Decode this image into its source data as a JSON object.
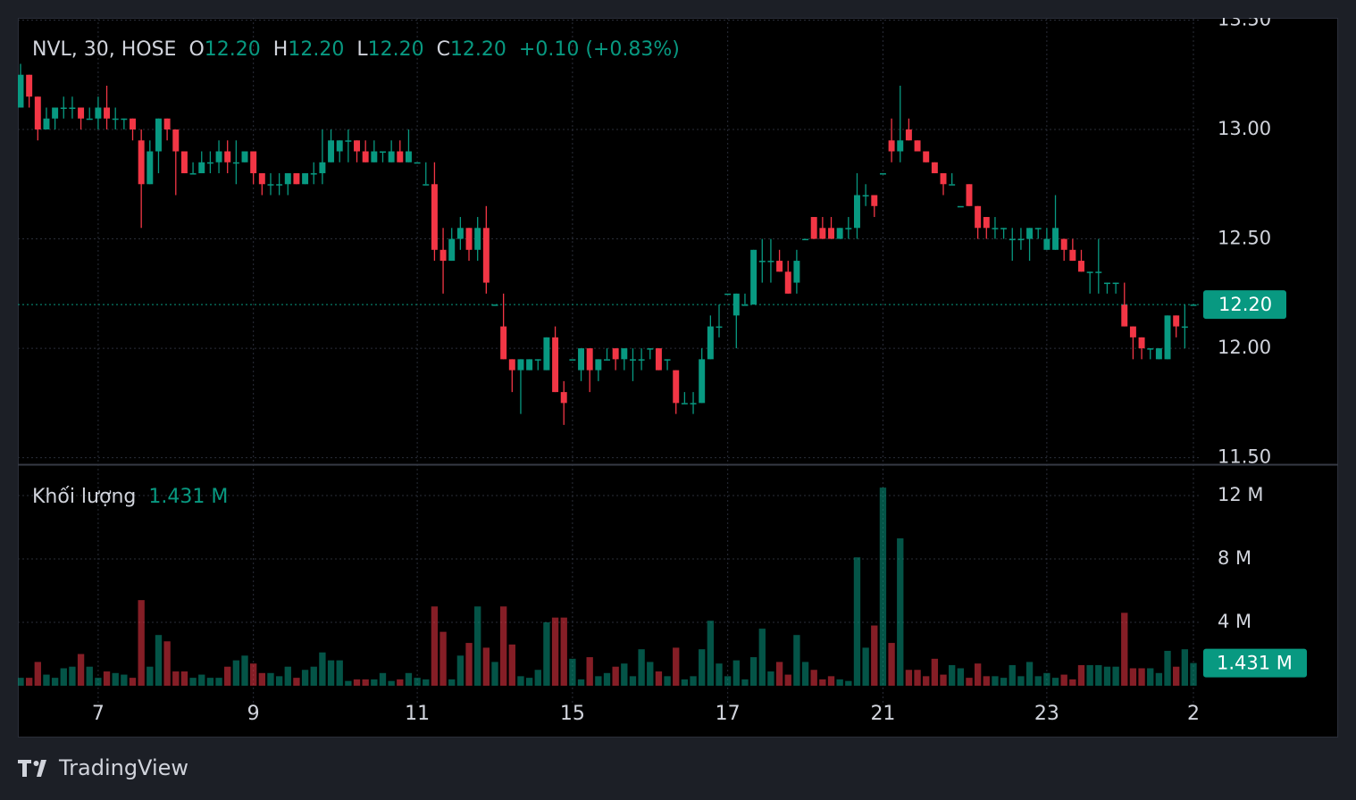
{
  "chart_data": {
    "type": "candlestick",
    "legend": {
      "title": "NVL, 30, HOSE",
      "items": [
        {
          "key": "O",
          "value": "12.20"
        },
        {
          "key": "H",
          "value": "12.20"
        },
        {
          "key": "L",
          "value": "12.20"
        },
        {
          "key": "C",
          "value": "12.20"
        }
      ],
      "change": "+0.10 (+0.83%)"
    },
    "volume_title": "Khối lượng",
    "brand": "TradingView",
    "up_color": "#089981",
    "down_color": "#f23645",
    "grid": true,
    "ylim": [
      11.47,
      13.51
    ],
    "yticks": [
      {
        "value": 11.5,
        "label": "11.50"
      },
      {
        "value": 12,
        "label": "12.00"
      },
      {
        "value": 12.5,
        "label": "12.50"
      },
      {
        "value": 13,
        "label": "13.00"
      },
      {
        "value": 13.5,
        "label": "13.50"
      }
    ],
    "last_price": {
      "value": 12.2,
      "label": "12.20"
    },
    "volume_ylim": [
      0,
      13.97
    ],
    "volume_yticks": [
      {
        "value": 4,
        "label": "4 M"
      },
      {
        "value": 8,
        "label": "8 M"
      },
      {
        "value": 12,
        "label": "12 M"
      }
    ],
    "categories": [
      null,
      null,
      null,
      null,
      null,
      null,
      null,
      null,
      null,
      "7",
      null,
      null,
      null,
      null,
      null,
      null,
      null,
      null,
      null,
      null,
      null,
      null,
      null,
      null,
      null,
      null,
      null,
      "9",
      null,
      null,
      null,
      null,
      null,
      null,
      null,
      null,
      null,
      null,
      null,
      null,
      null,
      null,
      null,
      null,
      null,
      null,
      "11",
      null,
      null,
      null,
      null,
      null,
      null,
      null,
      null,
      null,
      null,
      null,
      null,
      null,
      null,
      null,
      null,
      null,
      "15",
      null,
      null,
      null,
      null,
      null,
      null,
      null,
      null,
      null,
      null,
      null,
      null,
      null,
      null,
      null,
      null,
      null,
      "17",
      null,
      null,
      null,
      null,
      null,
      null,
      null,
      null,
      null,
      null,
      null,
      null,
      null,
      null,
      null,
      null,
      null,
      "21",
      null,
      null,
      null,
      null,
      null,
      null,
      null,
      null,
      null,
      null,
      null,
      null,
      null,
      null,
      null,
      null,
      null,
      null,
      "23",
      null,
      null,
      null,
      null,
      null,
      null,
      null,
      null,
      null,
      null,
      null,
      null,
      null,
      null,
      null,
      null,
      "2"
    ],
    "ohlc": [
      [
        13.1,
        13.3,
        13.1,
        13.25
      ],
      [
        13.25,
        13.25,
        13.1,
        13.15
      ],
      [
        13.15,
        13.15,
        12.95,
        13.0
      ],
      [
        13.0,
        13.1,
        13.0,
        13.05
      ],
      [
        13.05,
        13.1,
        13.0,
        13.1
      ],
      [
        13.1,
        13.15,
        13.05,
        13.1
      ],
      [
        13.1,
        13.15,
        13.05,
        13.1
      ],
      [
        13.1,
        13.1,
        13.0,
        13.05
      ],
      [
        13.05,
        13.1,
        13.05,
        13.05
      ],
      [
        13.05,
        13.15,
        13.0,
        13.1
      ],
      [
        13.1,
        13.2,
        13.0,
        13.05
      ],
      [
        13.05,
        13.1,
        13.0,
        13.05
      ],
      [
        13.05,
        13.05,
        13.0,
        13.05
      ],
      [
        13.05,
        13.05,
        12.95,
        13.0
      ],
      [
        12.95,
        13.0,
        12.55,
        12.75
      ],
      [
        12.75,
        12.95,
        12.75,
        12.9
      ],
      [
        12.9,
        13.05,
        12.8,
        13.05
      ],
      [
        13.05,
        13.05,
        12.95,
        13.0
      ],
      [
        13.0,
        13.0,
        12.7,
        12.9
      ],
      [
        12.9,
        12.9,
        12.8,
        12.8
      ],
      [
        12.8,
        12.85,
        12.8,
        12.8
      ],
      [
        12.8,
        12.9,
        12.8,
        12.85
      ],
      [
        12.85,
        12.9,
        12.8,
        12.85
      ],
      [
        12.85,
        12.95,
        12.8,
        12.9
      ],
      [
        12.9,
        12.95,
        12.8,
        12.85
      ],
      [
        12.85,
        12.95,
        12.75,
        12.85
      ],
      [
        12.85,
        12.9,
        12.85,
        12.9
      ],
      [
        12.9,
        12.9,
        12.75,
        12.8
      ],
      [
        12.8,
        12.8,
        12.7,
        12.75
      ],
      [
        12.75,
        12.8,
        12.7,
        12.75
      ],
      [
        12.75,
        12.8,
        12.7,
        12.75
      ],
      [
        12.75,
        12.8,
        12.7,
        12.8
      ],
      [
        12.8,
        12.8,
        12.75,
        12.75
      ],
      [
        12.75,
        12.8,
        12.75,
        12.8
      ],
      [
        12.8,
        12.85,
        12.75,
        12.8
      ],
      [
        12.8,
        13.0,
        12.75,
        12.85
      ],
      [
        12.85,
        13.0,
        12.85,
        12.95
      ],
      [
        12.9,
        12.95,
        12.85,
        12.95
      ],
      [
        12.95,
        13.0,
        12.85,
        12.95
      ],
      [
        12.95,
        12.95,
        12.85,
        12.9
      ],
      [
        12.9,
        12.95,
        12.85,
        12.85
      ],
      [
        12.85,
        12.95,
        12.85,
        12.9
      ],
      [
        12.9,
        12.9,
        12.85,
        12.9
      ],
      [
        12.85,
        12.95,
        12.85,
        12.9
      ],
      [
        12.9,
        12.95,
        12.85,
        12.85
      ],
      [
        12.85,
        13.0,
        12.85,
        12.9
      ],
      [
        12.85,
        12.85,
        12.85,
        12.85
      ],
      [
        12.75,
        12.85,
        12.75,
        12.75
      ],
      [
        12.75,
        12.85,
        12.4,
        12.45
      ],
      [
        12.45,
        12.55,
        12.25,
        12.4
      ],
      [
        12.4,
        12.55,
        12.4,
        12.5
      ],
      [
        12.5,
        12.6,
        12.45,
        12.55
      ],
      [
        12.55,
        12.55,
        12.4,
        12.45
      ],
      [
        12.45,
        12.6,
        12.4,
        12.55
      ],
      [
        12.55,
        12.65,
        12.25,
        12.3
      ],
      [
        12.2,
        12.2,
        12.2,
        12.2
      ],
      [
        12.1,
        12.25,
        11.95,
        11.95
      ],
      [
        11.95,
        11.95,
        11.8,
        11.9
      ],
      [
        11.9,
        11.95,
        11.7,
        11.95
      ],
      [
        11.9,
        11.95,
        11.9,
        11.95
      ],
      [
        11.95,
        11.95,
        11.9,
        11.95
      ],
      [
        11.9,
        12.05,
        11.9,
        12.05
      ],
      [
        12.05,
        12.1,
        11.8,
        11.8
      ],
      [
        11.8,
        11.85,
        11.65,
        11.75
      ],
      [
        11.95,
        11.95,
        11.95,
        11.95
      ],
      [
        11.9,
        12.0,
        11.85,
        12.0
      ],
      [
        12.0,
        12.0,
        11.8,
        11.9
      ],
      [
        11.9,
        11.95,
        11.85,
        11.95
      ],
      [
        11.95,
        12.0,
        11.95,
        11.95
      ],
      [
        12.0,
        12.0,
        11.9,
        11.95
      ],
      [
        11.95,
        12.0,
        11.9,
        12.0
      ],
      [
        11.95,
        12.0,
        11.85,
        11.95
      ],
      [
        11.95,
        12.0,
        11.9,
        11.95
      ],
      [
        12.0,
        12.0,
        11.95,
        12.0
      ],
      [
        12.0,
        12.0,
        11.9,
        11.9
      ],
      [
        11.95,
        11.95,
        11.9,
        11.95
      ],
      [
        11.9,
        11.9,
        11.7,
        11.75
      ],
      [
        11.75,
        11.8,
        11.75,
        11.75
      ],
      [
        11.75,
        11.8,
        11.7,
        11.75
      ],
      [
        11.75,
        12.0,
        11.75,
        11.95
      ],
      [
        11.95,
        12.15,
        11.95,
        12.1
      ],
      [
        12.1,
        12.2,
        12.05,
        12.1
      ],
      [
        12.25,
        12.25,
        12.25,
        12.25
      ],
      [
        12.15,
        12.25,
        12.0,
        12.25
      ],
      [
        12.2,
        12.25,
        12.2,
        12.2
      ],
      [
        12.2,
        12.45,
        12.2,
        12.45
      ],
      [
        12.4,
        12.5,
        12.3,
        12.4
      ],
      [
        12.4,
        12.5,
        12.3,
        12.4
      ],
      [
        12.4,
        12.45,
        12.35,
        12.35
      ],
      [
        12.35,
        12.4,
        12.25,
        12.25
      ],
      [
        12.3,
        12.45,
        12.25,
        12.4
      ],
      [
        12.5,
        12.5,
        12.5,
        12.5
      ],
      [
        12.6,
        12.6,
        12.5,
        12.5
      ],
      [
        12.55,
        12.6,
        12.5,
        12.5
      ],
      [
        12.55,
        12.6,
        12.5,
        12.5
      ],
      [
        12.5,
        12.55,
        12.5,
        12.55
      ],
      [
        12.55,
        12.6,
        12.5,
        12.55
      ],
      [
        12.55,
        12.8,
        12.5,
        12.7
      ],
      [
        12.7,
        12.75,
        12.65,
        12.7
      ],
      [
        12.7,
        12.7,
        12.6,
        12.65
      ],
      [
        12.8,
        12.8,
        12.8,
        12.8
      ],
      [
        12.95,
        13.05,
        12.85,
        12.9
      ],
      [
        12.9,
        13.2,
        12.85,
        12.95
      ],
      [
        13.0,
        13.05,
        12.95,
        12.95
      ],
      [
        12.95,
        12.95,
        12.9,
        12.9
      ],
      [
        12.9,
        12.9,
        12.85,
        12.85
      ],
      [
        12.85,
        12.85,
        12.8,
        12.8
      ],
      [
        12.8,
        12.8,
        12.7,
        12.75
      ],
      [
        12.75,
        12.8,
        12.75,
        12.75
      ],
      [
        12.65,
        12.65,
        12.65,
        12.65
      ],
      [
        12.75,
        12.75,
        12.65,
        12.65
      ],
      [
        12.65,
        12.65,
        12.5,
        12.55
      ],
      [
        12.6,
        12.6,
        12.5,
        12.55
      ],
      [
        12.55,
        12.6,
        12.5,
        12.55
      ],
      [
        12.55,
        12.55,
        12.5,
        12.55
      ],
      [
        12.5,
        12.55,
        12.4,
        12.5
      ],
      [
        12.5,
        12.55,
        12.45,
        12.5
      ],
      [
        12.5,
        12.55,
        12.4,
        12.55
      ],
      [
        12.55,
        12.55,
        12.5,
        12.55
      ],
      [
        12.45,
        12.55,
        12.45,
        12.5
      ],
      [
        12.45,
        12.7,
        12.45,
        12.55
      ],
      [
        12.5,
        12.5,
        12.4,
        12.45
      ],
      [
        12.45,
        12.5,
        12.4,
        12.4
      ],
      [
        12.4,
        12.45,
        12.35,
        12.35
      ],
      [
        12.35,
        12.35,
        12.25,
        12.35
      ],
      [
        12.35,
        12.5,
        12.25,
        12.35
      ],
      [
        12.3,
        12.3,
        12.25,
        12.3
      ],
      [
        12.3,
        12.3,
        12.25,
        12.3
      ],
      [
        12.2,
        12.3,
        12.1,
        12.1
      ],
      [
        12.1,
        12.1,
        11.95,
        12.05
      ],
      [
        12.05,
        12.05,
        11.95,
        12.0
      ],
      [
        12.0,
        12.0,
        11.95,
        12.0
      ],
      [
        11.95,
        12.0,
        11.95,
        12.0
      ],
      [
        11.95,
        12.15,
        11.95,
        12.15
      ],
      [
        12.15,
        12.15,
        12.05,
        12.1
      ],
      [
        12.1,
        12.2,
        12.0,
        12.1
      ],
      [
        12.2,
        12.2,
        12.2,
        12.2
      ]
    ],
    "volume": [
      0.5,
      0.5,
      1.5,
      0.7,
      0.5,
      1.1,
      1.2,
      2.0,
      1.2,
      0.5,
      0.9,
      0.8,
      0.7,
      0.5,
      5.4,
      1.2,
      3.2,
      2.8,
      0.9,
      0.9,
      0.5,
      0.7,
      0.5,
      0.5,
      1.2,
      1.6,
      1.9,
      1.4,
      0.8,
      0.8,
      0.6,
      1.2,
      0.5,
      1.0,
      1.2,
      2.1,
      1.6,
      1.6,
      0.3,
      0.4,
      0.4,
      0.4,
      0.8,
      0.3,
      0.4,
      0.8,
      0.5,
      0.4,
      5.0,
      3.4,
      0.4,
      1.9,
      2.7,
      5.0,
      2.4,
      1.5,
      5.0,
      2.6,
      0.6,
      0.5,
      1.0,
      4.0,
      4.3,
      4.3,
      1.7,
      0.4,
      1.8,
      0.6,
      0.8,
      1.2,
      1.4,
      0.6,
      2.3,
      1.5,
      0.9,
      0.6,
      2.4,
      0.4,
      0.6,
      2.3,
      4.1,
      1.4,
      0.6,
      1.6,
      0.4,
      1.8,
      3.6,
      0.9,
      1.5,
      0.7,
      3.2,
      1.5,
      1.0,
      0.4,
      0.6,
      0.4,
      0.3,
      8.1,
      2.4,
      3.8,
      12.5,
      2.7,
      9.3,
      1.0,
      1.0,
      0.6,
      1.7,
      0.7,
      1.3,
      1.1,
      0.5,
      1.4,
      0.6,
      0.6,
      0.5,
      1.3,
      0.6,
      1.5,
      0.6,
      0.8,
      0.5,
      0.7,
      0.4,
      1.3,
      1.3,
      1.3,
      1.2,
      1.2,
      4.6,
      1.1,
      1.1,
      1.1,
      0.8,
      2.2,
      1.2,
      2.3,
      1.431
    ],
    "volume_value_label": "1.431 M"
  }
}
